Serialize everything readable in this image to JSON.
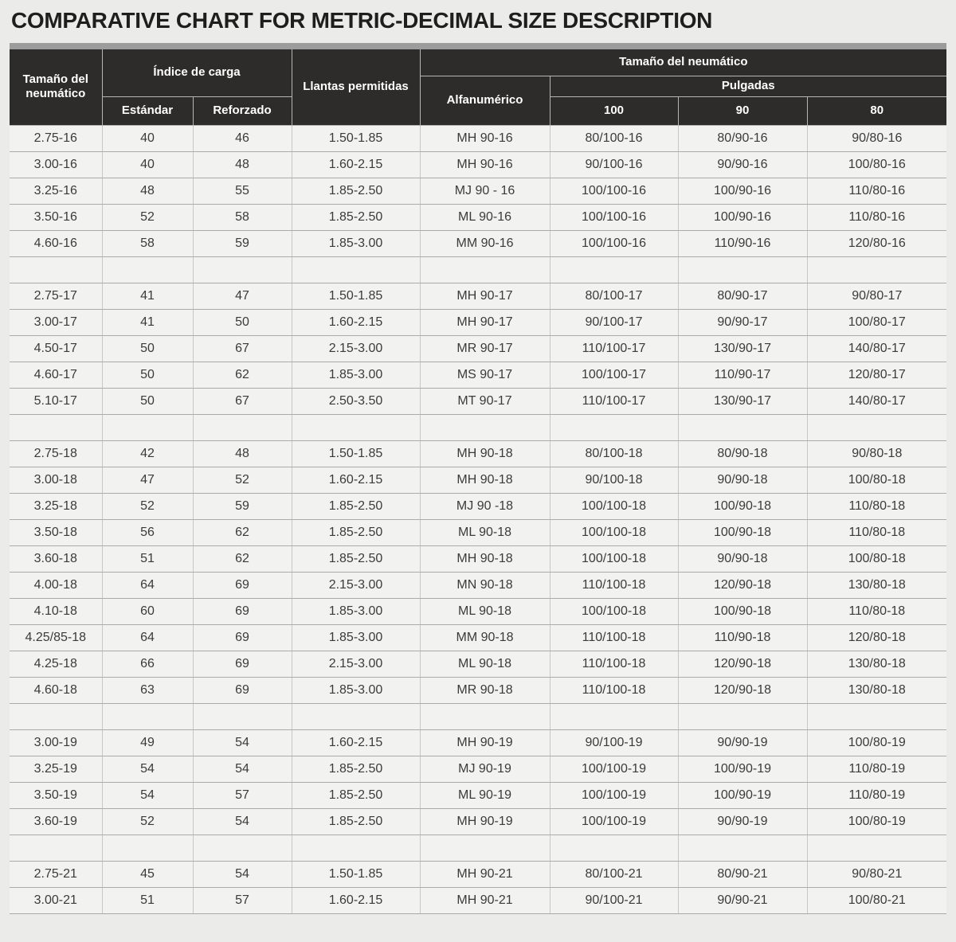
{
  "title": "COMPARATIVE CHART FOR METRIC-DECIMAL SIZE DESCRIPTION",
  "colors": {
    "page_background": "#ebebe9",
    "row_background": "#f2f2f0",
    "header_background": "#2d2c2a",
    "header_text": "#ffffff",
    "body_text": "#3b3b3b",
    "title_text": "#1e1e1c",
    "top_strip": "#9c9c9c",
    "horizontal_border": "#ababab",
    "vertical_border": "#c7c7c7"
  },
  "table": {
    "header": {
      "tire_size_left": "Tamaño del neumático",
      "load_index": "Índice de carga",
      "standard": "Estándar",
      "reinforced": "Reforzado",
      "rims_allowed": "Llantas permitidas",
      "tire_size_right": "Tamaño del neumático",
      "alphanumeric": "Alfanumérico",
      "inches": "Pulgadas",
      "inch_100": "100",
      "inch_90": "90",
      "inch_80": "80"
    },
    "groups": [
      {
        "name": "rim-16",
        "rows": [
          [
            "2.75-16",
            "40",
            "46",
            "1.50-1.85",
            "MH 90-16",
            "80/100-16",
            "80/90-16",
            "90/80-16"
          ],
          [
            "3.00-16",
            "40",
            "48",
            "1.60-2.15",
            "MH 90-16",
            "90/100-16",
            "90/90-16",
            "100/80-16"
          ],
          [
            "3.25-16",
            "48",
            "55",
            "1.85-2.50",
            "MJ 90 - 16",
            "100/100-16",
            "100/90-16",
            "110/80-16"
          ],
          [
            "3.50-16",
            "52",
            "58",
            "1.85-2.50",
            "ML 90-16",
            "100/100-16",
            "100/90-16",
            "110/80-16"
          ],
          [
            "4.60-16",
            "58",
            "59",
            "1.85-3.00",
            "MM 90-16",
            "100/100-16",
            "110/90-16",
            "120/80-16"
          ]
        ]
      },
      {
        "name": "rim-17",
        "rows": [
          [
            "2.75-17",
            "41",
            "47",
            "1.50-1.85",
            "MH 90-17",
            "80/100-17",
            "80/90-17",
            "90/80-17"
          ],
          [
            "3.00-17",
            "41",
            "50",
            "1.60-2.15",
            "MH 90-17",
            "90/100-17",
            "90/90-17",
            "100/80-17"
          ],
          [
            "4.50-17",
            "50",
            "67",
            "2.15-3.00",
            "MR 90-17",
            "110/100-17",
            "130/90-17",
            "140/80-17"
          ],
          [
            "4.60-17",
            "50",
            "62",
            "1.85-3.00",
            "MS 90-17",
            "100/100-17",
            "110/90-17",
            "120/80-17"
          ],
          [
            "5.10-17",
            "50",
            "67",
            "2.50-3.50",
            "MT 90-17",
            "110/100-17",
            "130/90-17",
            "140/80-17"
          ]
        ]
      },
      {
        "name": "rim-18",
        "rows": [
          [
            "2.75-18",
            "42",
            "48",
            "1.50-1.85",
            "MH 90-18",
            "80/100-18",
            "80/90-18",
            "90/80-18"
          ],
          [
            "3.00-18",
            "47",
            "52",
            "1.60-2.15",
            "MH 90-18",
            "90/100-18",
            "90/90-18",
            "100/80-18"
          ],
          [
            "3.25-18",
            "52",
            "59",
            "1.85-2.50",
            "MJ 90 -18",
            "100/100-18",
            "100/90-18",
            "110/80-18"
          ],
          [
            "3.50-18",
            "56",
            "62",
            "1.85-2.50",
            "ML 90-18",
            "100/100-18",
            "100/90-18",
            "110/80-18"
          ],
          [
            "3.60-18",
            "51",
            "62",
            "1.85-2.50",
            "MH 90-18",
            "100/100-18",
            "90/90-18",
            "100/80-18"
          ],
          [
            "4.00-18",
            "64",
            "69",
            "2.15-3.00",
            "MN 90-18",
            "110/100-18",
            "120/90-18",
            "130/80-18"
          ],
          [
            "4.10-18",
            "60",
            "69",
            "1.85-3.00",
            "ML 90-18",
            "100/100-18",
            "100/90-18",
            "110/80-18"
          ],
          [
            "4.25/85-18",
            "64",
            "69",
            "1.85-3.00",
            "MM 90-18",
            "110/100-18",
            "110/90-18",
            "120/80-18"
          ],
          [
            "4.25-18",
            "66",
            "69",
            "2.15-3.00",
            "ML 90-18",
            "110/100-18",
            "120/90-18",
            "130/80-18"
          ],
          [
            "4.60-18",
            "63",
            "69",
            "1.85-3.00",
            "MR 90-18",
            "110/100-18",
            "120/90-18",
            "130/80-18"
          ]
        ]
      },
      {
        "name": "rim-19",
        "rows": [
          [
            "3.00-19",
            "49",
            "54",
            "1.60-2.15",
            "MH 90-19",
            "90/100-19",
            "90/90-19",
            "100/80-19"
          ],
          [
            "3.25-19",
            "54",
            "54",
            "1.85-2.50",
            "MJ 90-19",
            "100/100-19",
            "100/90-19",
            "110/80-19"
          ],
          [
            "3.50-19",
            "54",
            "57",
            "1.85-2.50",
            "ML 90-19",
            "100/100-19",
            "100/90-19",
            "110/80-19"
          ],
          [
            "3.60-19",
            "52",
            "54",
            "1.85-2.50",
            "MH 90-19",
            "100/100-19",
            "90/90-19",
            "100/80-19"
          ]
        ]
      },
      {
        "name": "rim-21",
        "rows": [
          [
            "2.75-21",
            "45",
            "54",
            "1.50-1.85",
            "MH 90-21",
            "80/100-21",
            "80/90-21",
            "90/80-21"
          ],
          [
            "3.00-21",
            "51",
            "57",
            "1.60-2.15",
            "MH 90-21",
            "90/100-21",
            "90/90-21",
            "100/80-21"
          ]
        ]
      }
    ]
  }
}
